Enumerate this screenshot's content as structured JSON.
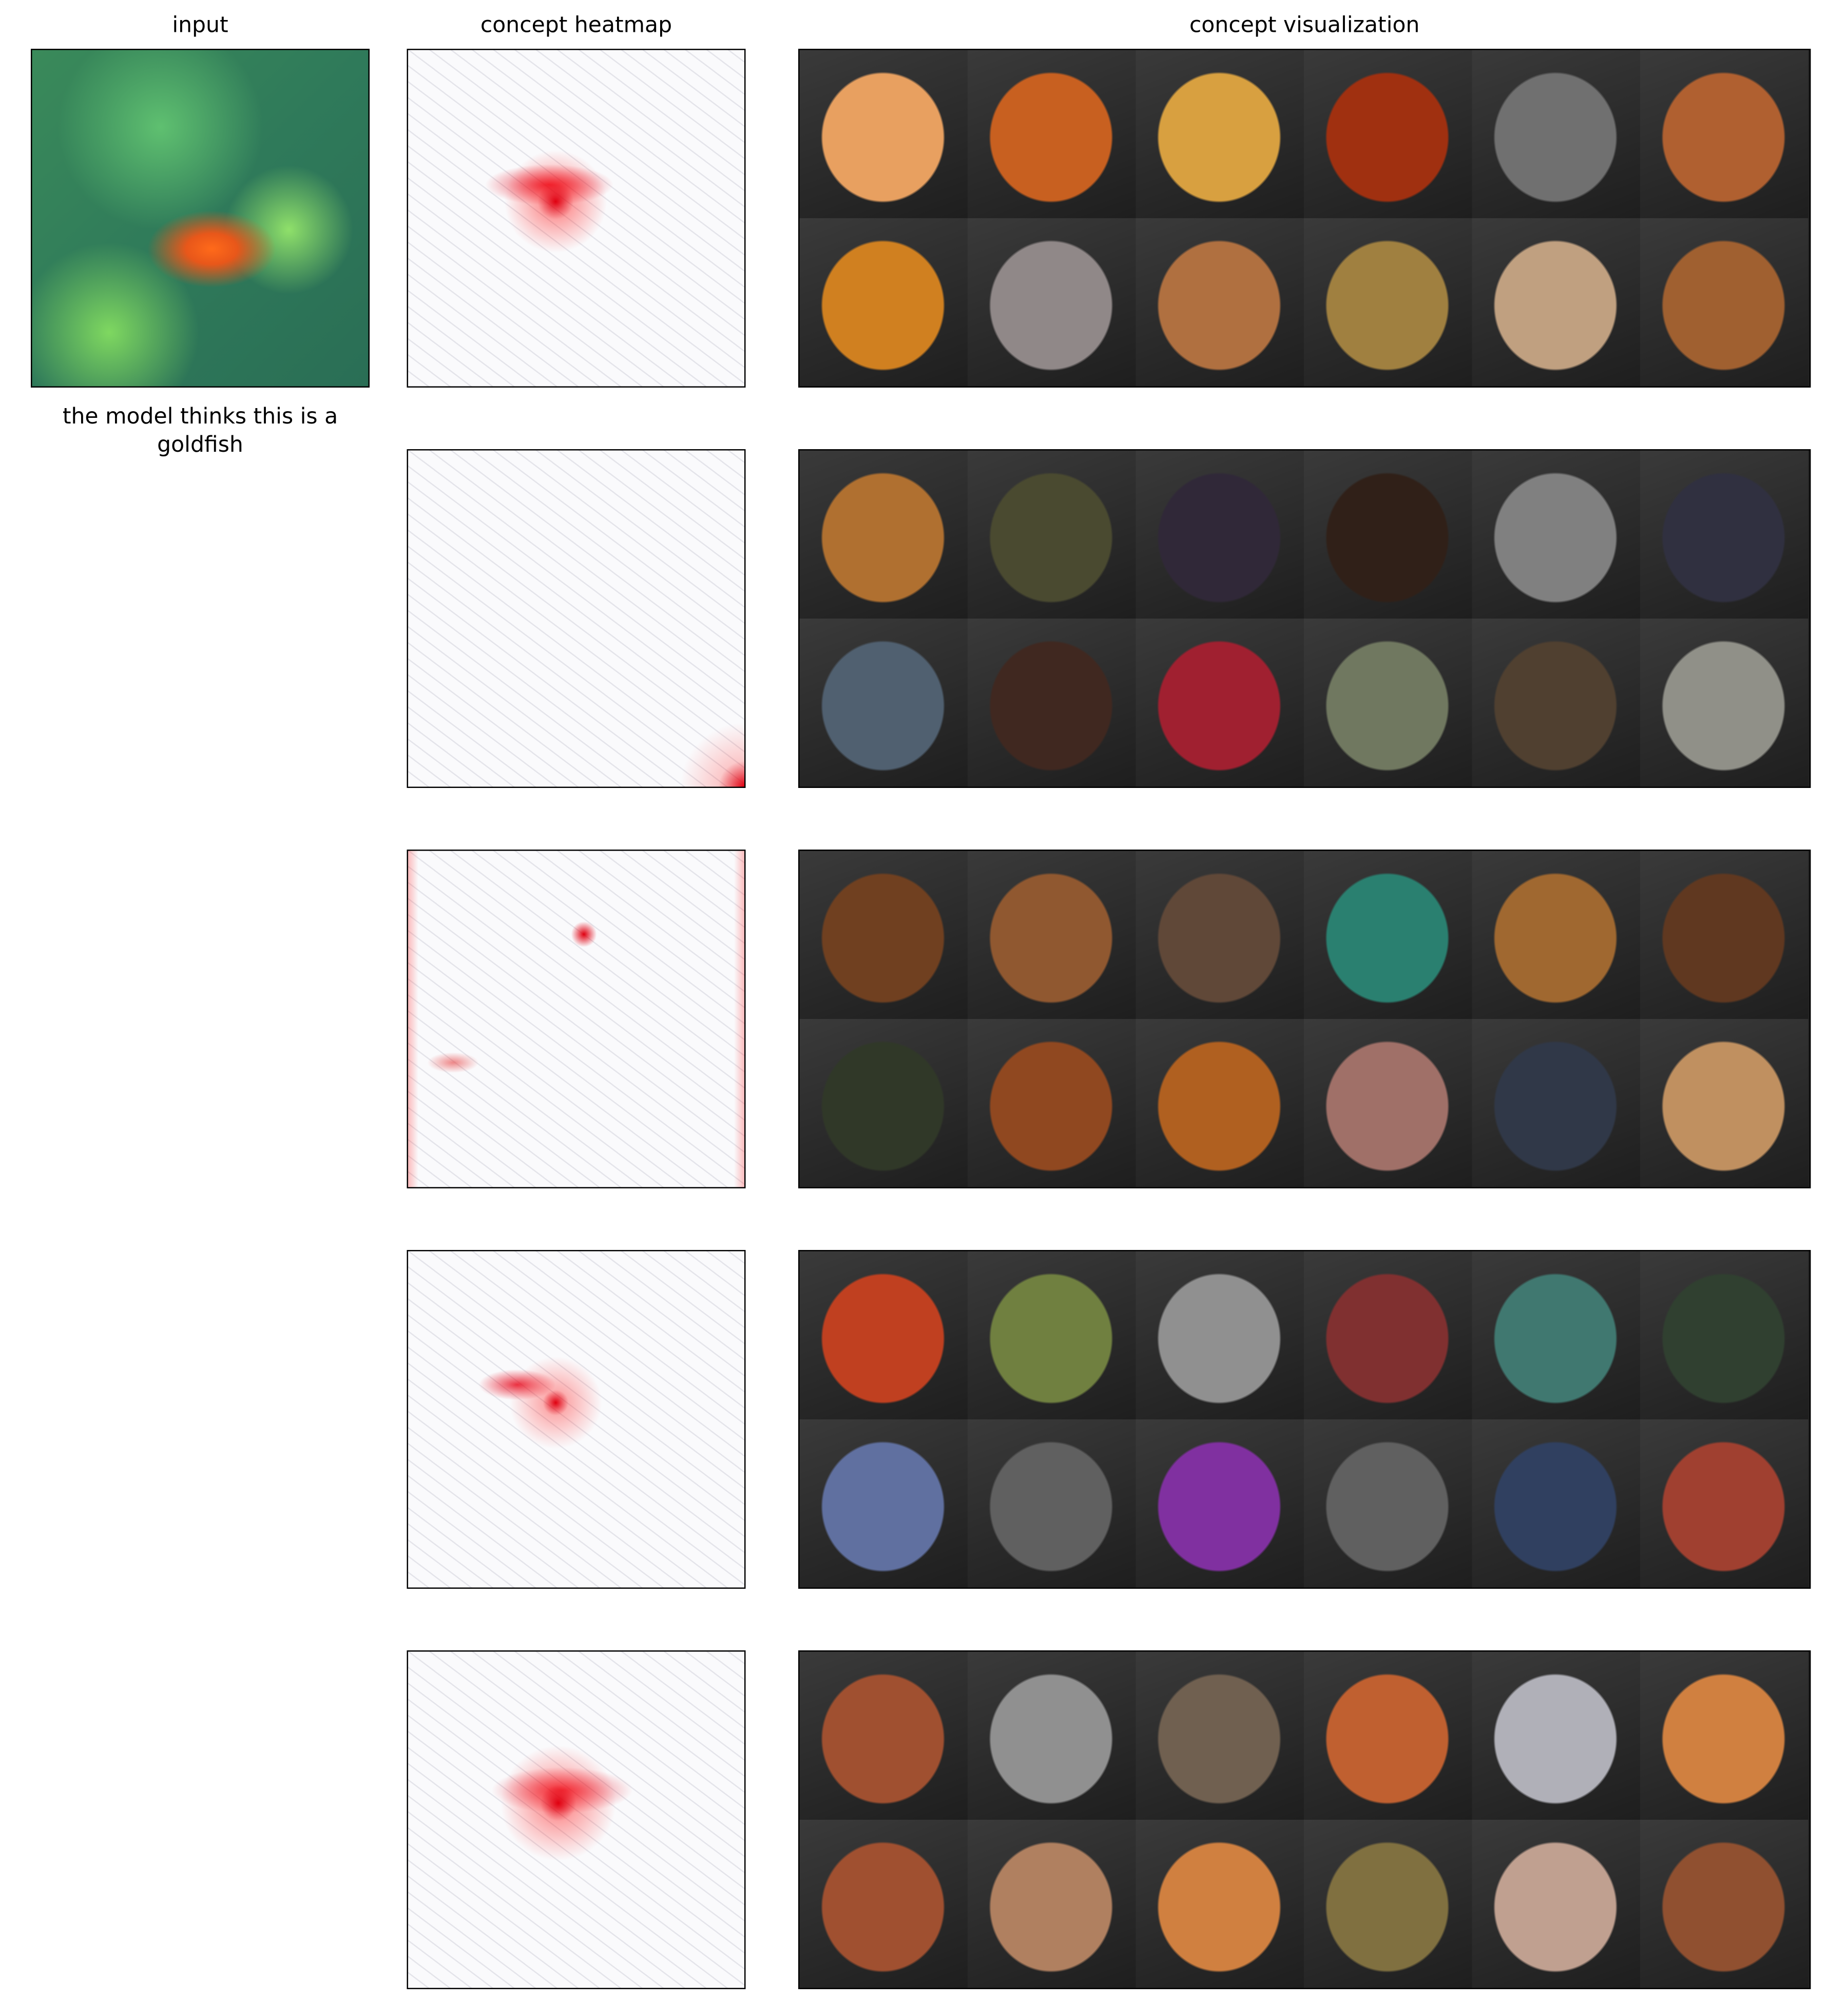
{
  "header": {
    "input": "input",
    "heatmap": "concept heatmap",
    "visualization": "concept visualization"
  },
  "caption": "the model thinks this is a goldfish"
}
